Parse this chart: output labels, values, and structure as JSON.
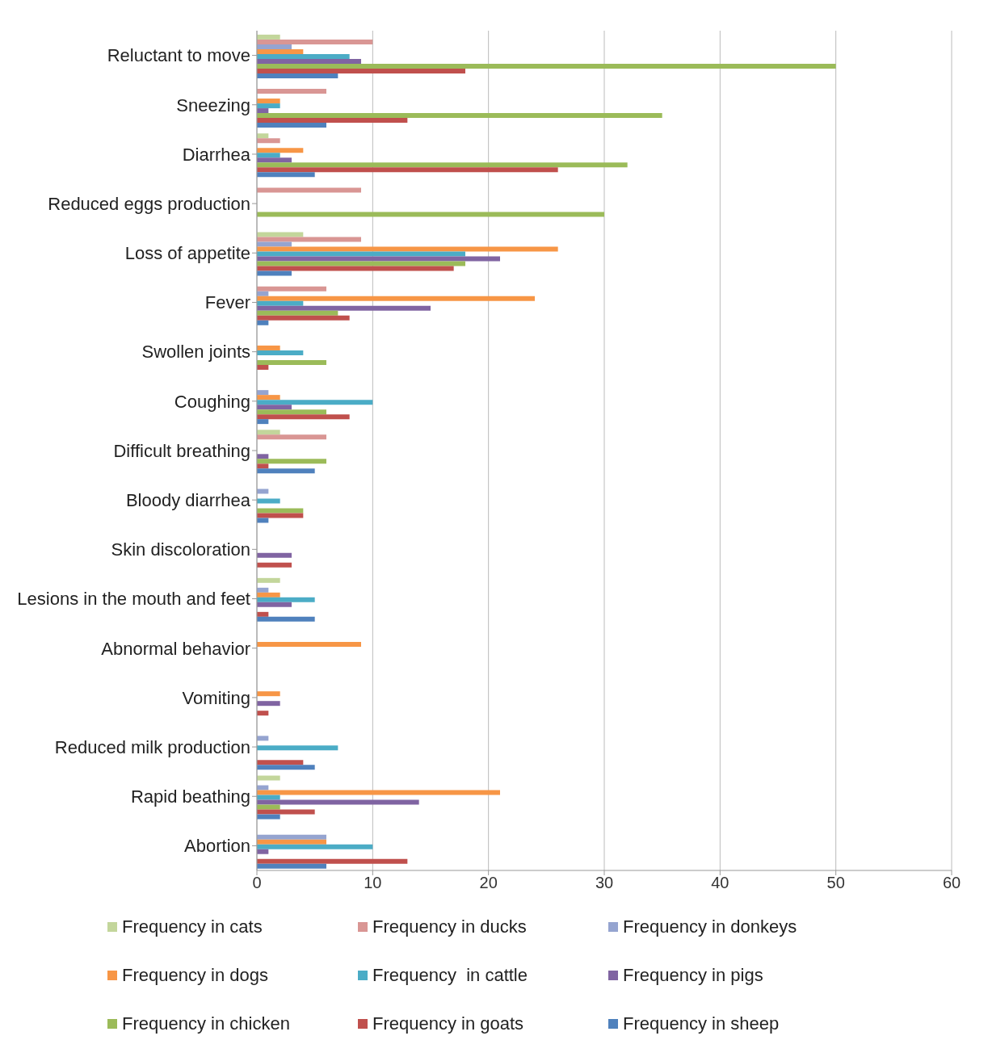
{
  "chart_data": {
    "type": "bar",
    "orientation": "horizontal",
    "categories": [
      "Reluctant to move",
      "Sneezing",
      "Diarrhea",
      "Reduced eggs production",
      "Loss of appetite",
      "Fever",
      "Swollen joints",
      "Coughing",
      "Difficult breathing",
      "Bloody diarrhea",
      "Skin discoloration",
      "Lesions in the mouth and feet",
      "Abnormal behavior",
      "Vomiting",
      "Reduced milk production",
      "Rapid beathing",
      "Abortion"
    ],
    "series": [
      {
        "name": "Frequency in cats",
        "color": "#c3d69b",
        "values": [
          2,
          null,
          1,
          null,
          4,
          null,
          null,
          null,
          2,
          null,
          null,
          2,
          null,
          null,
          null,
          2,
          null
        ]
      },
      {
        "name": "Frequency in ducks",
        "color": "#d99694",
        "values": [
          10,
          6,
          2,
          9,
          9,
          6,
          null,
          null,
          6,
          null,
          null,
          null,
          null,
          null,
          null,
          null,
          null
        ]
      },
      {
        "name": "Frequency in donkeys",
        "color": "#95a4d0",
        "values": [
          3,
          null,
          null,
          null,
          3,
          1,
          null,
          1,
          null,
          1,
          null,
          1,
          null,
          null,
          1,
          1,
          6
        ]
      },
      {
        "name": "Frequency in dogs",
        "color": "#f79646",
        "values": [
          4,
          2,
          4,
          null,
          26,
          24,
          2,
          2,
          null,
          null,
          null,
          2,
          9,
          2,
          null,
          21,
          6
        ]
      },
      {
        "name": "Frequency  in cattle",
        "color": "#4bacc6",
        "values": [
          8,
          2,
          2,
          null,
          18,
          4,
          4,
          10,
          null,
          2,
          null,
          5,
          null,
          null,
          7,
          2,
          10
        ]
      },
      {
        "name": "Frequency in pigs",
        "color": "#8064a2",
        "values": [
          9,
          1,
          3,
          null,
          21,
          15,
          null,
          3,
          1,
          null,
          3,
          3,
          null,
          2,
          null,
          14,
          1
        ]
      },
      {
        "name": "Frequency in chicken",
        "color": "#9bbb59",
        "values": [
          50,
          35,
          32,
          30,
          18,
          7,
          6,
          6,
          6,
          4,
          null,
          null,
          null,
          null,
          null,
          2,
          null
        ]
      },
      {
        "name": "Frequency in goats",
        "color": "#c0504d",
        "values": [
          18,
          13,
          26,
          null,
          17,
          8,
          1,
          8,
          1,
          4,
          3,
          1,
          null,
          1,
          4,
          5,
          13
        ]
      },
      {
        "name": "Frequency in sheep",
        "color": "#4f81bd",
        "values": [
          7,
          6,
          5,
          null,
          3,
          1,
          null,
          1,
          5,
          1,
          null,
          5,
          null,
          null,
          5,
          2,
          6
        ]
      }
    ],
    "xlim": [
      0,
      60
    ],
    "xticks": [
      0,
      10,
      20,
      30,
      40,
      50,
      60
    ],
    "grid": "x",
    "legend": "bottom"
  }
}
